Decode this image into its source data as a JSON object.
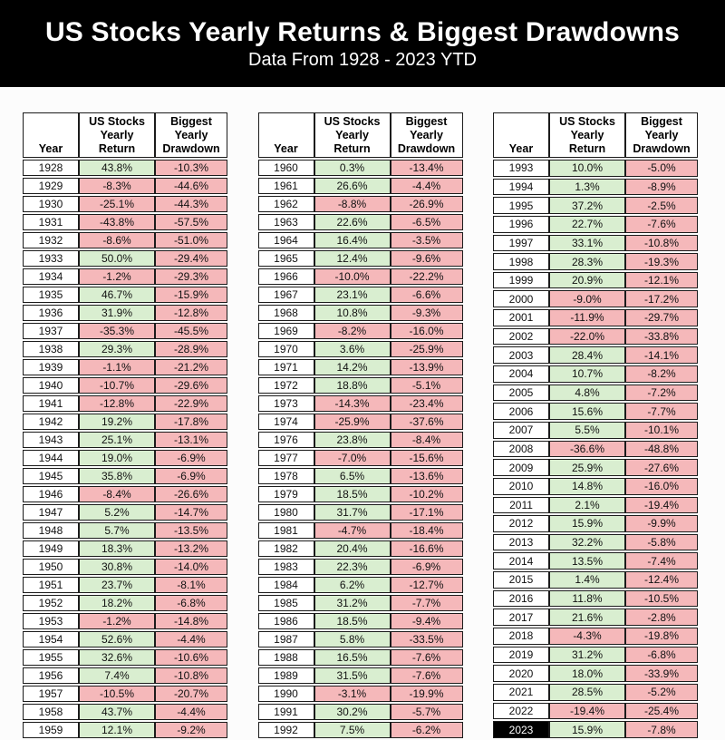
{
  "header": {
    "title": "US Stocks Yearly Returns & Biggest Drawdowns",
    "subtitle": "Data From 1928 - 2023 YTD"
  },
  "colors": {
    "positive_bg": "#d9eed0",
    "negative_bg": "#f5b8ba",
    "banner_bg": "#000000",
    "banner_text": "#ffffff",
    "highlight_year_bg": "#000000",
    "highlight_year_text": "#ffffff"
  },
  "chart_data": {
    "type": "table",
    "title": "US Stocks Yearly Returns & Biggest Drawdowns",
    "subtitle": "Data From 1928 - 2023 YTD",
    "columns": [
      "Year",
      "US Stocks Yearly Return",
      "Biggest Yearly Drawdown"
    ],
    "column_headers": [
      "Year",
      "US Stocks\nYearly\nReturn",
      "Biggest\nYearly\nDrawdown"
    ],
    "highlight_year": "2023",
    "groups": [
      {
        "rows": [
          [
            "1928",
            "43.8%",
            "-10.3%"
          ],
          [
            "1929",
            "-8.3%",
            "-44.6%"
          ],
          [
            "1930",
            "-25.1%",
            "-44.3%"
          ],
          [
            "1931",
            "-43.8%",
            "-57.5%"
          ],
          [
            "1932",
            "-8.6%",
            "-51.0%"
          ],
          [
            "1933",
            "50.0%",
            "-29.4%"
          ],
          [
            "1934",
            "-1.2%",
            "-29.3%"
          ],
          [
            "1935",
            "46.7%",
            "-15.9%"
          ],
          [
            "1936",
            "31.9%",
            "-12.8%"
          ],
          [
            "1937",
            "-35.3%",
            "-45.5%"
          ],
          [
            "1938",
            "29.3%",
            "-28.9%"
          ],
          [
            "1939",
            "-1.1%",
            "-21.2%"
          ],
          [
            "1940",
            "-10.7%",
            "-29.6%"
          ],
          [
            "1941",
            "-12.8%",
            "-22.9%"
          ],
          [
            "1942",
            "19.2%",
            "-17.8%"
          ],
          [
            "1943",
            "25.1%",
            "-13.1%"
          ],
          [
            "1944",
            "19.0%",
            "-6.9%"
          ],
          [
            "1945",
            "35.8%",
            "-6.9%"
          ],
          [
            "1946",
            "-8.4%",
            "-26.6%"
          ],
          [
            "1947",
            "5.2%",
            "-14.7%"
          ],
          [
            "1948",
            "5.7%",
            "-13.5%"
          ],
          [
            "1949",
            "18.3%",
            "-13.2%"
          ],
          [
            "1950",
            "30.8%",
            "-14.0%"
          ],
          [
            "1951",
            "23.7%",
            "-8.1%"
          ],
          [
            "1952",
            "18.2%",
            "-6.8%"
          ],
          [
            "1953",
            "-1.2%",
            "-14.8%"
          ],
          [
            "1954",
            "52.6%",
            "-4.4%"
          ],
          [
            "1955",
            "32.6%",
            "-10.6%"
          ],
          [
            "1956",
            "7.4%",
            "-10.8%"
          ],
          [
            "1957",
            "-10.5%",
            "-20.7%"
          ],
          [
            "1958",
            "43.7%",
            "-4.4%"
          ],
          [
            "1959",
            "12.1%",
            "-9.2%"
          ]
        ]
      },
      {
        "rows": [
          [
            "1960",
            "0.3%",
            "-13.4%"
          ],
          [
            "1961",
            "26.6%",
            "-4.4%"
          ],
          [
            "1962",
            "-8.8%",
            "-26.9%"
          ],
          [
            "1963",
            "22.6%",
            "-6.5%"
          ],
          [
            "1964",
            "16.4%",
            "-3.5%"
          ],
          [
            "1965",
            "12.4%",
            "-9.6%"
          ],
          [
            "1966",
            "-10.0%",
            "-22.2%"
          ],
          [
            "1967",
            "23.1%",
            "-6.6%"
          ],
          [
            "1968",
            "10.8%",
            "-9.3%"
          ],
          [
            "1969",
            "-8.2%",
            "-16.0%"
          ],
          [
            "1970",
            "3.6%",
            "-25.9%"
          ],
          [
            "1971",
            "14.2%",
            "-13.9%"
          ],
          [
            "1972",
            "18.8%",
            "-5.1%"
          ],
          [
            "1973",
            "-14.3%",
            "-23.4%"
          ],
          [
            "1974",
            "-25.9%",
            "-37.6%"
          ],
          [
            "1976",
            "23.8%",
            "-8.4%"
          ],
          [
            "1977",
            "-7.0%",
            "-15.6%"
          ],
          [
            "1978",
            "6.5%",
            "-13.6%"
          ],
          [
            "1979",
            "18.5%",
            "-10.2%"
          ],
          [
            "1980",
            "31.7%",
            "-17.1%"
          ],
          [
            "1981",
            "-4.7%",
            "-18.4%"
          ],
          [
            "1982",
            "20.4%",
            "-16.6%"
          ],
          [
            "1983",
            "22.3%",
            "-6.9%"
          ],
          [
            "1984",
            "6.2%",
            "-12.7%"
          ],
          [
            "1985",
            "31.2%",
            "-7.7%"
          ],
          [
            "1986",
            "18.5%",
            "-9.4%"
          ],
          [
            "1987",
            "5.8%",
            "-33.5%"
          ],
          [
            "1988",
            "16.5%",
            "-7.6%"
          ],
          [
            "1989",
            "31.5%",
            "-7.6%"
          ],
          [
            "1990",
            "-3.1%",
            "-19.9%"
          ],
          [
            "1991",
            "30.2%",
            "-5.7%"
          ],
          [
            "1992",
            "7.5%",
            "-6.2%"
          ]
        ]
      },
      {
        "rows": [
          [
            "1993",
            "10.0%",
            "-5.0%"
          ],
          [
            "1994",
            "1.3%",
            "-8.9%"
          ],
          [
            "1995",
            "37.2%",
            "-2.5%"
          ],
          [
            "1996",
            "22.7%",
            "-7.6%"
          ],
          [
            "1997",
            "33.1%",
            "-10.8%"
          ],
          [
            "1998",
            "28.3%",
            "-19.3%"
          ],
          [
            "1999",
            "20.9%",
            "-12.1%"
          ],
          [
            "2000",
            "-9.0%",
            "-17.2%"
          ],
          [
            "2001",
            "-11.9%",
            "-29.7%"
          ],
          [
            "2002",
            "-22.0%",
            "-33.8%"
          ],
          [
            "2003",
            "28.4%",
            "-14.1%"
          ],
          [
            "2004",
            "10.7%",
            "-8.2%"
          ],
          [
            "2005",
            "4.8%",
            "-7.2%"
          ],
          [
            "2006",
            "15.6%",
            "-7.7%"
          ],
          [
            "2007",
            "5.5%",
            "-10.1%"
          ],
          [
            "2008",
            "-36.6%",
            "-48.8%"
          ],
          [
            "2009",
            "25.9%",
            "-27.6%"
          ],
          [
            "2010",
            "14.8%",
            "-16.0%"
          ],
          [
            "2011",
            "2.1%",
            "-19.4%"
          ],
          [
            "2012",
            "15.9%",
            "-9.9%"
          ],
          [
            "2013",
            "32.2%",
            "-5.8%"
          ],
          [
            "2014",
            "13.5%",
            "-7.4%"
          ],
          [
            "2015",
            "1.4%",
            "-12.4%"
          ],
          [
            "2016",
            "11.8%",
            "-10.5%"
          ],
          [
            "2017",
            "21.6%",
            "-2.8%"
          ],
          [
            "2018",
            "-4.3%",
            "-19.8%"
          ],
          [
            "2019",
            "31.2%",
            "-6.8%"
          ],
          [
            "2020",
            "18.0%",
            "-33.9%"
          ],
          [
            "2021",
            "28.5%",
            "-5.2%"
          ],
          [
            "2022",
            "-19.4%",
            "-25.4%"
          ],
          [
            "2023",
            "15.9%",
            "-7.8%"
          ]
        ]
      }
    ]
  }
}
